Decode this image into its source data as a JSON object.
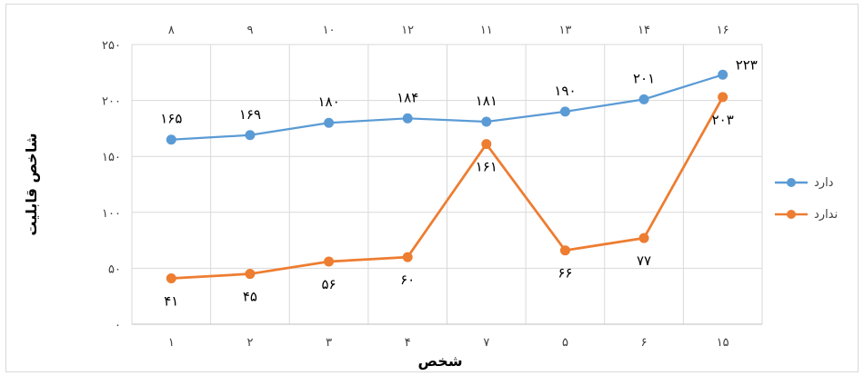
{
  "chart_data": {
    "type": "line",
    "categories": [
      "۱",
      "۲",
      "۳",
      "۴",
      "۷",
      "۵",
      "۶",
      "۱۵"
    ],
    "top_labels": [
      "۸",
      "۹",
      "۱۰",
      "۱۲",
      "۱۱",
      "۱۳",
      "۱۴",
      "۱۶"
    ],
    "series": [
      {
        "name": "دارد",
        "values": [
          165,
          169,
          180,
          184,
          181,
          190,
          201,
          223
        ],
        "labels": [
          "۱۶۵",
          "۱۶۹",
          "۱۸۰",
          "۱۸۴",
          "۱۸۱",
          "۱۹۰",
          "۲۰۱",
          "۲۲۳"
        ],
        "color": "#5B9BD5"
      },
      {
        "name": "ندارد",
        "values": [
          41,
          45,
          56,
          60,
          161,
          66,
          77,
          203
        ],
        "labels": [
          "۴۱",
          "۴۵",
          "۵۶",
          "۶۰",
          "۱۶۱",
          "۶۶",
          "۷۷",
          "۲۰۳"
        ],
        "color": "#ED7D31"
      }
    ],
    "ylim": [
      0,
      250
    ],
    "yticks": [
      0,
      50,
      100,
      150,
      200,
      250
    ],
    "ytick_labels": [
      "۰",
      "۵۰",
      "۱۰۰",
      "۱۵۰",
      "۲۰۰",
      "۲۵۰"
    ],
    "xlabel": "شخص",
    "ylabel": "شاخص قابلیت",
    "grid": true,
    "legend_position": "right"
  }
}
